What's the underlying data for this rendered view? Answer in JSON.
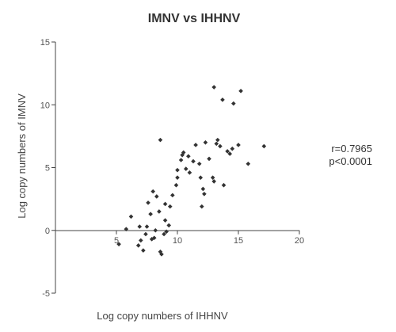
{
  "chart_data": {
    "type": "scatter",
    "title": "IMNV vs IHHNV",
    "xlabel": "Log copy numbers of IHHNV",
    "ylabel": "Log copy numbers of IMNV",
    "xlim": [
      0,
      20
    ],
    "ylim": [
      -5,
      15
    ],
    "xticks": [
      5,
      10,
      15,
      20
    ],
    "yticks": [
      -5,
      0,
      5,
      10,
      15
    ],
    "grid": false,
    "annotations": [
      "r=0.7965",
      "p<0.0001"
    ],
    "marker_color": "#333333",
    "points": [
      [
        5.2,
        -1.1
      ],
      [
        5.8,
        0.1
      ],
      [
        6.2,
        1.1
      ],
      [
        6.8,
        -1.2
      ],
      [
        7.0,
        -0.8
      ],
      [
        7.2,
        -1.6
      ],
      [
        7.4,
        -0.3
      ],
      [
        7.5,
        0.3
      ],
      [
        7.6,
        2.2
      ],
      [
        7.9,
        -0.7
      ],
      [
        8.1,
        -0.6
      ],
      [
        8.2,
        0.0
      ],
      [
        8.3,
        2.7
      ],
      [
        8.5,
        1.5
      ],
      [
        8.6,
        -1.7
      ],
      [
        8.7,
        -1.9
      ],
      [
        8.9,
        -0.3
      ],
      [
        9.0,
        0.8
      ],
      [
        9.0,
        2.1
      ],
      [
        9.1,
        -0.1
      ],
      [
        9.3,
        0.4
      ],
      [
        9.4,
        1.9
      ],
      [
        8.0,
        3.1
      ],
      [
        7.8,
        1.3
      ],
      [
        6.9,
        0.3
      ],
      [
        8.6,
        7.2
      ],
      [
        9.6,
        2.8
      ],
      [
        9.9,
        3.6
      ],
      [
        10.0,
        4.2
      ],
      [
        10.0,
        4.8
      ],
      [
        10.3,
        5.6
      ],
      [
        10.4,
        6.0
      ],
      [
        10.5,
        6.2
      ],
      [
        10.7,
        4.9
      ],
      [
        10.9,
        5.9
      ],
      [
        11.0,
        4.6
      ],
      [
        11.3,
        5.5
      ],
      [
        11.5,
        6.8
      ],
      [
        11.8,
        5.3
      ],
      [
        11.9,
        4.2
      ],
      [
        12.1,
        3.3
      ],
      [
        12.2,
        2.9
      ],
      [
        12.0,
        1.9
      ],
      [
        12.3,
        7.0
      ],
      [
        12.6,
        5.7
      ],
      [
        12.9,
        4.2
      ],
      [
        13.0,
        3.9
      ],
      [
        13.2,
        6.9
      ],
      [
        13.3,
        7.2
      ],
      [
        13.5,
        6.7
      ],
      [
        13.8,
        3.6
      ],
      [
        14.1,
        6.3
      ],
      [
        14.3,
        6.1
      ],
      [
        14.5,
        6.5
      ],
      [
        15.0,
        6.8
      ],
      [
        13.0,
        11.4
      ],
      [
        13.7,
        10.4
      ],
      [
        14.6,
        10.1
      ],
      [
        15.2,
        11.1
      ],
      [
        15.8,
        5.3
      ],
      [
        17.1,
        6.7
      ]
    ]
  }
}
